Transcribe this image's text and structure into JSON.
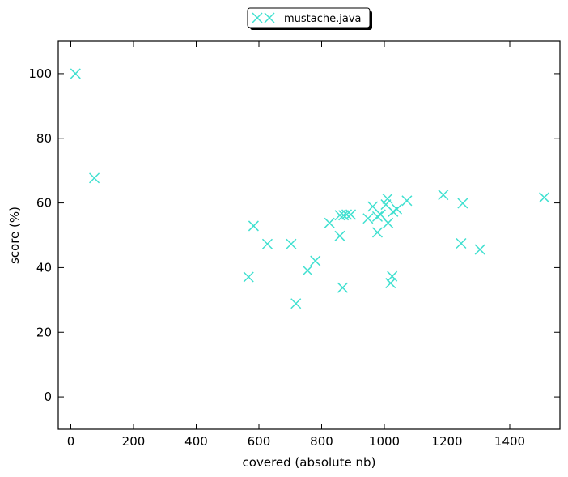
{
  "chart_data": {
    "type": "scatter",
    "xlabel": "covered (absolute nb)",
    "ylabel": "score (%)",
    "xlim": [
      -40,
      1560
    ],
    "ylim": [
      -10,
      110
    ],
    "xticks": [
      0,
      200,
      400,
      600,
      800,
      1000,
      1200,
      1400
    ],
    "yticks": [
      0,
      20,
      40,
      60,
      80,
      100
    ],
    "grid": false,
    "legend_position": "top-center",
    "series": [
      {
        "name": "mustache.java",
        "color": "#40e0d0",
        "marker": "x",
        "points": [
          [
            15,
            100
          ],
          [
            75,
            67.7
          ],
          [
            567,
            37.1
          ],
          [
            583,
            52.9
          ],
          [
            627,
            47.3
          ],
          [
            703,
            47.3
          ],
          [
            718,
            28.9
          ],
          [
            755,
            39.1
          ],
          [
            780,
            42.1
          ],
          [
            825,
            53.8
          ],
          [
            858,
            49.8
          ],
          [
            858,
            56.2
          ],
          [
            867,
            33.8
          ],
          [
            870,
            56.2
          ],
          [
            880,
            56.4
          ],
          [
            893,
            56.4
          ],
          [
            948,
            55.2
          ],
          [
            963,
            58.9
          ],
          [
            978,
            50.9
          ],
          [
            978,
            55.8
          ],
          [
            988,
            56.4
          ],
          [
            1005,
            59.5
          ],
          [
            1010,
            61.3
          ],
          [
            1012,
            53.8
          ],
          [
            1020,
            35.2
          ],
          [
            1025,
            37.3
          ],
          [
            1028,
            57.3
          ],
          [
            1040,
            58.1
          ],
          [
            1072,
            60.7
          ],
          [
            1188,
            62.5
          ],
          [
            1245,
            47.5
          ],
          [
            1250,
            59.9
          ],
          [
            1305,
            45.6
          ],
          [
            1510,
            61.7
          ]
        ]
      }
    ]
  }
}
